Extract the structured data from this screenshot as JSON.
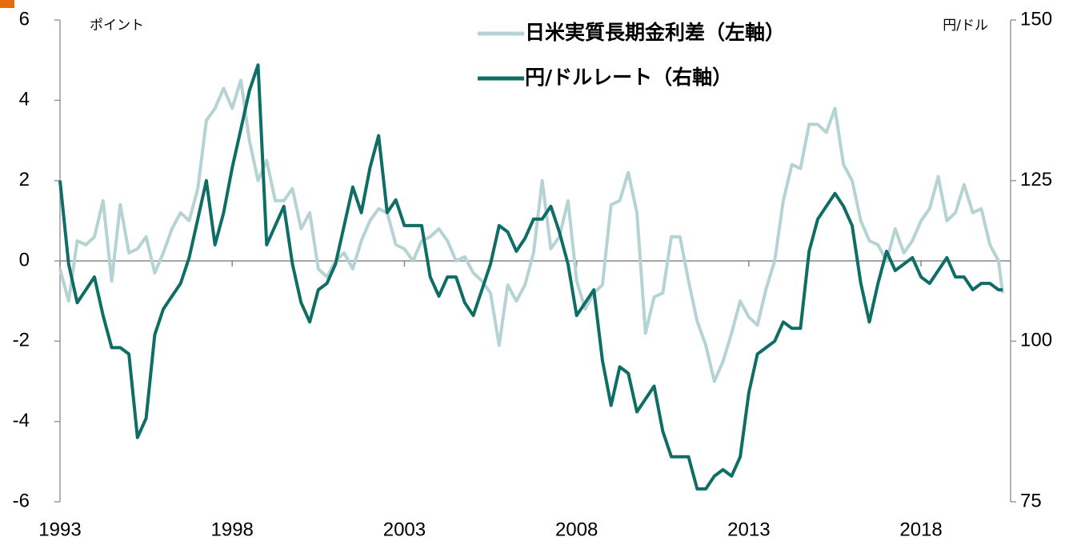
{
  "chart_data": {
    "type": "line",
    "left_unit": "ポイント",
    "right_unit": "円/ドル",
    "x": [
      1993.0,
      1993.25,
      1993.5,
      1993.75,
      1994.0,
      1994.25,
      1994.5,
      1994.75,
      1995.0,
      1995.25,
      1995.5,
      1995.75,
      1996.0,
      1996.25,
      1996.5,
      1996.75,
      1997.0,
      1997.25,
      1997.5,
      1997.75,
      1998.0,
      1998.25,
      1998.5,
      1998.75,
      1999.0,
      1999.25,
      1999.5,
      1999.75,
      2000.0,
      2000.25,
      2000.5,
      2000.75,
      2001.0,
      2001.25,
      2001.5,
      2001.75,
      2002.0,
      2002.25,
      2002.5,
      2002.75,
      2003.0,
      2003.25,
      2003.5,
      2003.75,
      2004.0,
      2004.25,
      2004.5,
      2004.75,
      2005.0,
      2005.25,
      2005.5,
      2005.75,
      2006.0,
      2006.25,
      2006.5,
      2006.75,
      2007.0,
      2007.25,
      2007.5,
      2007.75,
      2008.0,
      2008.25,
      2008.5,
      2008.75,
      2009.0,
      2009.25,
      2009.5,
      2009.75,
      2010.0,
      2010.25,
      2010.5,
      2010.75,
      2011.0,
      2011.25,
      2011.5,
      2011.75,
      2012.0,
      2012.25,
      2012.5,
      2012.75,
      2013.0,
      2013.25,
      2013.5,
      2013.75,
      2014.0,
      2014.25,
      2014.5,
      2014.75,
      2015.0,
      2015.25,
      2015.5,
      2015.75,
      2016.0,
      2016.25,
      2016.5,
      2016.75,
      2017.0,
      2017.25,
      2017.5,
      2017.75,
      2018.0,
      2018.25,
      2018.5,
      2018.75,
      2019.0,
      2019.25,
      2019.5,
      2019.75,
      2020.0,
      2020.25,
      2020.37
    ],
    "series": [
      {
        "name": "日米実質長期金利差（左軸）",
        "color": "#b5d3d3",
        "axis": "y",
        "values": [
          -0.2,
          -1.0,
          0.5,
          0.4,
          0.6,
          1.5,
          -0.5,
          1.4,
          0.2,
          0.3,
          0.6,
          -0.3,
          0.2,
          0.8,
          1.2,
          1.0,
          1.8,
          3.5,
          3.8,
          4.3,
          3.8,
          4.5,
          3.0,
          2.0,
          2.5,
          1.5,
          1.5,
          1.8,
          0.8,
          1.2,
          -0.2,
          -0.4,
          0.0,
          0.2,
          -0.2,
          0.5,
          1.0,
          1.3,
          1.2,
          0.4,
          0.3,
          0.0,
          0.5,
          0.6,
          0.8,
          0.5,
          0.0,
          0.1,
          -0.3,
          -0.5,
          -0.8,
          -2.1,
          -0.6,
          -1.0,
          -0.6,
          0.2,
          2.0,
          0.3,
          0.6,
          1.5,
          -0.5,
          -1.2,
          -0.8,
          -0.6,
          1.4,
          1.5,
          2.2,
          1.2,
          -1.8,
          -0.9,
          -0.8,
          0.6,
          0.6,
          -0.5,
          -1.5,
          -2.1,
          -3.0,
          -2.5,
          -1.8,
          -1.0,
          -1.4,
          -1.6,
          -0.7,
          0.0,
          1.5,
          2.4,
          2.3,
          3.4,
          3.4,
          3.2,
          3.8,
          2.4,
          2.0,
          1.0,
          0.5,
          0.4,
          0.0,
          0.8,
          0.2,
          0.5,
          1.0,
          1.3,
          2.1,
          1.0,
          1.2,
          1.9,
          1.2,
          1.3,
          0.4,
          0.0,
          -0.8
        ]
      },
      {
        "name": "円/ドルレート（右軸）",
        "color": "#0e6e66",
        "axis": "y2",
        "values": [
          125,
          112,
          106,
          108,
          110,
          104,
          99,
          99,
          98,
          85,
          88,
          101,
          105,
          107,
          109,
          113,
          119,
          125,
          115,
          120,
          127,
          133,
          139,
          143,
          115,
          118,
          121,
          112,
          106,
          103,
          108,
          109,
          112,
          118,
          124,
          120,
          127,
          132,
          120,
          122,
          118,
          118,
          118,
          110,
          107,
          110,
          110,
          106,
          104,
          108,
          112,
          118,
          117,
          114,
          116,
          119,
          119,
          121,
          117,
          112,
          104,
          106,
          108,
          97,
          90,
          96,
          95,
          89,
          91,
          93,
          86,
          82,
          82,
          82,
          77,
          77,
          79,
          80,
          79,
          82,
          92,
          98,
          99,
          100,
          103,
          102,
          102,
          114,
          119,
          121,
          123,
          121,
          118,
          109,
          103,
          109,
          114,
          111,
          112,
          113,
          110,
          109,
          111,
          113,
          110,
          110,
          108,
          109,
          109,
          108,
          108
        ]
      }
    ],
    "xlim": [
      1993,
      2020.6
    ],
    "xticks": [
      1993,
      1998,
      2003,
      2008,
      2013,
      2018
    ],
    "ylim": [
      -6,
      6
    ],
    "yticks": [
      -6,
      -4,
      -2,
      0,
      2,
      4,
      6
    ],
    "y2lim": [
      75,
      150
    ],
    "y2ticks": [
      75,
      100,
      125,
      150
    ],
    "negative_tick_color": "#ff0000",
    "zero_line": true
  }
}
